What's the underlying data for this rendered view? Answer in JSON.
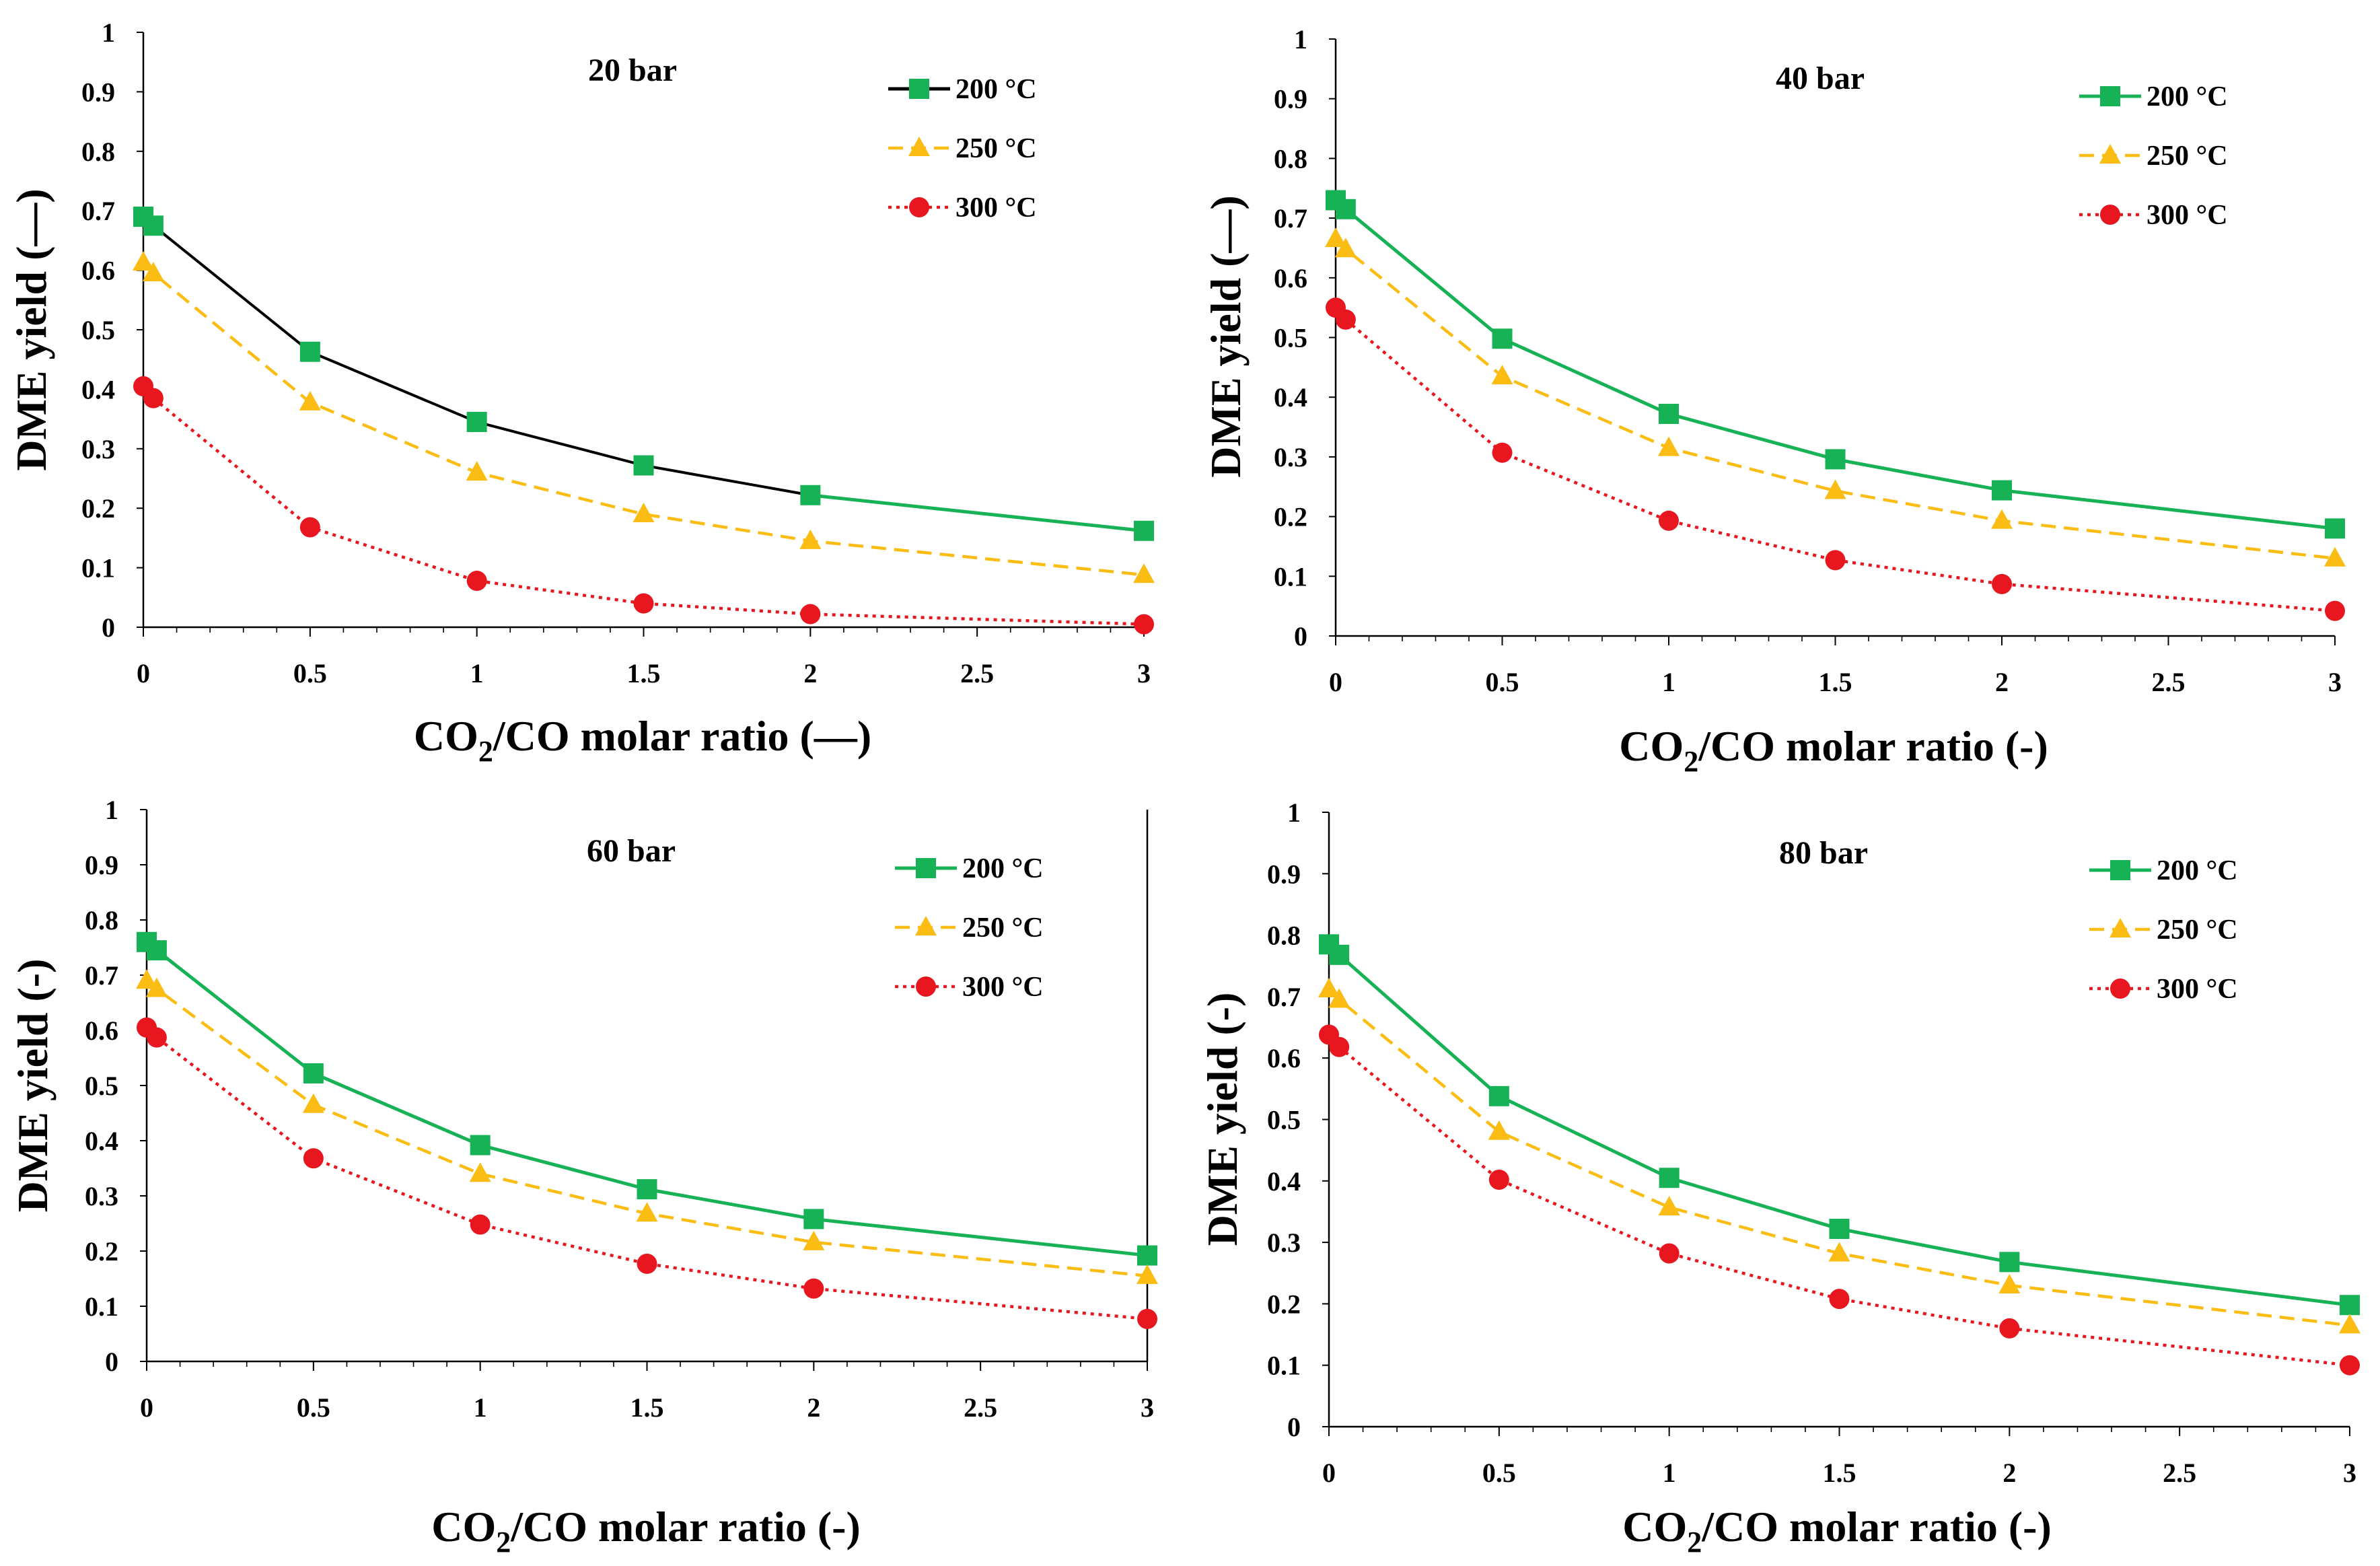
{
  "colors": {
    "c200": "#16b255",
    "c250": "#fbbd14",
    "c300": "#e8161e",
    "line20_200_first": "#000000",
    "axis": "#000000"
  },
  "chart_data": [
    {
      "type": "line",
      "title": "20 bar",
      "xlabel_main": "CO",
      "xlabel_sub": "2",
      "xlabel_rest": "/CO molar ratio (—)",
      "ylabel": "DME yield (—)",
      "xlim": [
        0,
        3
      ],
      "ylim": [
        0,
        1
      ],
      "xticks": [
        "0",
        "0.5",
        "1",
        "1.5",
        "2",
        "2.5",
        "3"
      ],
      "yticks": [
        "0",
        "0.1",
        "0.2",
        "0.3",
        "0.4",
        "0.5",
        "0.6",
        "0.7",
        "0.8",
        "0.9",
        "1"
      ],
      "x": [
        0,
        0.03,
        0.5,
        1,
        1.5,
        2,
        3
      ],
      "series": [
        {
          "name": "200 °C",
          "values": [
            0.69,
            0.675,
            0.463,
            0.345,
            0.272,
            0.222,
            0.162
          ]
        },
        {
          "name": "250 °C",
          "values": [
            0.613,
            0.595,
            0.378,
            0.26,
            0.19,
            0.145,
            0.088
          ]
        },
        {
          "name": "300 °C",
          "values": [
            0.405,
            0.385,
            0.168,
            0.078,
            0.04,
            0.022,
            0.005
          ]
        }
      ]
    },
    {
      "type": "line",
      "title": "40 bar",
      "xlabel_main": "CO",
      "xlabel_sub": "2",
      "xlabel_rest": "/CO molar ratio (-)",
      "ylabel": "DME yield (—)",
      "xlim": [
        0,
        3
      ],
      "ylim": [
        0,
        1
      ],
      "xticks": [
        "0",
        "0.5",
        "1",
        "1.5",
        "2",
        "2.5",
        "3"
      ],
      "yticks": [
        "0",
        "0.1",
        "0.2",
        "0.3",
        "0.4",
        "0.5",
        "0.6",
        "0.7",
        "0.8",
        "0.9",
        "1"
      ],
      "x": [
        0,
        0.03,
        0.5,
        1,
        1.5,
        2,
        3
      ],
      "series": [
        {
          "name": "200 °C",
          "values": [
            0.73,
            0.715,
            0.498,
            0.372,
            0.296,
            0.244,
            0.18
          ]
        },
        {
          "name": "250 °C",
          "values": [
            0.665,
            0.648,
            0.435,
            0.315,
            0.243,
            0.193,
            0.13
          ]
        },
        {
          "name": "300 °C",
          "values": [
            0.55,
            0.53,
            0.307,
            0.193,
            0.127,
            0.087,
            0.042
          ]
        }
      ]
    },
    {
      "type": "line",
      "title": "60 bar",
      "xlabel_main": "CO",
      "xlabel_sub": "2",
      "xlabel_rest": "/CO molar ratio (-)",
      "ylabel": "DME yield (-)",
      "xlim": [
        0,
        3
      ],
      "ylim": [
        0,
        1
      ],
      "xticks": [
        "0",
        "0.5",
        "1",
        "1.5",
        "2",
        "2.5",
        "3"
      ],
      "yticks": [
        "0",
        "0.1",
        "0.2",
        "0.3",
        "0.4",
        "0.5",
        "0.6",
        "0.7",
        "0.8",
        "0.9",
        "1"
      ],
      "x": [
        0,
        0.03,
        0.5,
        1,
        1.5,
        2,
        3
      ],
      "series": [
        {
          "name": "200 °C",
          "values": [
            0.76,
            0.745,
            0.522,
            0.392,
            0.312,
            0.258,
            0.192
          ]
        },
        {
          "name": "250 °C",
          "values": [
            0.69,
            0.675,
            0.465,
            0.34,
            0.268,
            0.216,
            0.155
          ]
        },
        {
          "name": "300 °C",
          "values": [
            0.605,
            0.587,
            0.368,
            0.248,
            0.177,
            0.132,
            0.077
          ]
        }
      ]
    },
    {
      "type": "line",
      "title": "80 bar",
      "xlabel_main": "CO",
      "xlabel_sub": "2",
      "xlabel_rest": "/CO molar ratio (-)",
      "ylabel": "DME yield (-)",
      "xlim": [
        0,
        3
      ],
      "ylim": [
        0,
        1
      ],
      "xticks": [
        "0",
        "0.5",
        "1",
        "1.5",
        "2",
        "2.5",
        "3"
      ],
      "yticks": [
        "0",
        "0.1",
        "0.2",
        "0.3",
        "0.4",
        "0.5",
        "0.6",
        "0.7",
        "0.8",
        "0.9",
        "1"
      ],
      "x": [
        0,
        0.03,
        0.5,
        1,
        1.5,
        2,
        3
      ],
      "series": [
        {
          "name": "200 °C",
          "values": [
            0.785,
            0.768,
            0.538,
            0.405,
            0.322,
            0.268,
            0.198
          ]
        },
        {
          "name": "250 °C",
          "values": [
            0.712,
            0.695,
            0.48,
            0.357,
            0.282,
            0.23,
            0.165
          ]
        },
        {
          "name": "300 °C",
          "values": [
            0.638,
            0.618,
            0.402,
            0.282,
            0.208,
            0.16,
            0.1
          ]
        }
      ]
    }
  ]
}
